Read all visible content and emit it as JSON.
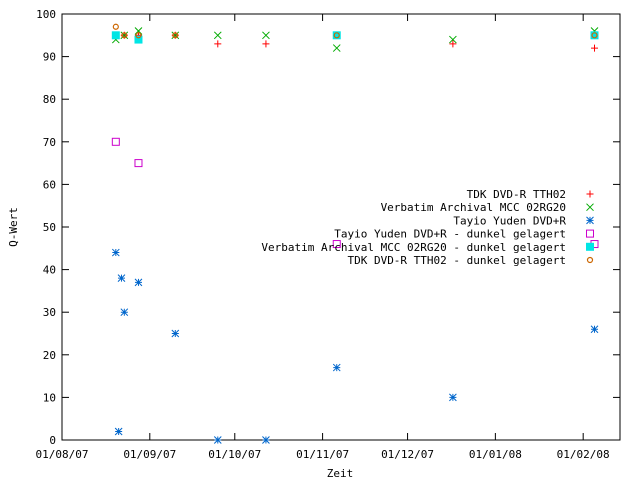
{
  "chart_data": {
    "type": "scatter",
    "xlabel": "Zeit",
    "ylabel": "Q-Wert",
    "xlim": [
      "2007-08-01",
      "2008-02-14"
    ],
    "ylim": [
      0,
      100
    ],
    "x_ticks": [
      "2007-08-01",
      "2007-09-01",
      "2007-10-01",
      "2007-11-01",
      "2007-12-01",
      "2008-01-01",
      "2008-02-01"
    ],
    "x_tick_labels": [
      "01/08/07",
      "01/09/07",
      "01/10/07",
      "01/11/07",
      "01/12/07",
      "01/01/08",
      "01/02/08"
    ],
    "y_ticks": [
      0,
      10,
      20,
      30,
      40,
      50,
      60,
      70,
      80,
      90,
      100
    ],
    "y_tick_labels": [
      "0",
      "10",
      "20",
      "30",
      "40",
      "50",
      "60",
      "70",
      "80",
      "90",
      "100"
    ],
    "grid": false,
    "legend_position": "right",
    "series": [
      {
        "name": "TDK DVD-R TTH02",
        "color": "#ff0000",
        "marker": "plus",
        "points": [
          {
            "x": "2007-08-20",
            "y": 95
          },
          {
            "x": "2007-08-23",
            "y": 95
          },
          {
            "x": "2007-08-28",
            "y": 95
          },
          {
            "x": "2007-09-10",
            "y": 95
          },
          {
            "x": "2007-09-25",
            "y": 93
          },
          {
            "x": "2007-10-12",
            "y": 93
          },
          {
            "x": "2007-11-06",
            "y": 95
          },
          {
            "x": "2007-12-17",
            "y": 93
          },
          {
            "x": "2008-02-05",
            "y": 92
          }
        ]
      },
      {
        "name": "Verbatim Archival MCC 02RG20",
        "color": "#00aa00",
        "marker": "cross",
        "points": [
          {
            "x": "2007-08-20",
            "y": 94
          },
          {
            "x": "2007-08-23",
            "y": 95
          },
          {
            "x": "2007-08-28",
            "y": 96
          },
          {
            "x": "2007-09-10",
            "y": 95
          },
          {
            "x": "2007-09-25",
            "y": 95
          },
          {
            "x": "2007-10-12",
            "y": 95
          },
          {
            "x": "2007-11-06",
            "y": 92
          },
          {
            "x": "2007-12-17",
            "y": 94
          },
          {
            "x": "2008-02-05",
            "y": 96
          }
        ]
      },
      {
        "name": "Tayio Yuden DVD+R",
        "color": "#0066cc",
        "marker": "star",
        "points": [
          {
            "x": "2007-08-20",
            "y": 44
          },
          {
            "x": "2007-08-21",
            "y": 2
          },
          {
            "x": "2007-08-22",
            "y": 38
          },
          {
            "x": "2007-08-23",
            "y": 30
          },
          {
            "x": "2007-08-28",
            "y": 37
          },
          {
            "x": "2007-09-10",
            "y": 25
          },
          {
            "x": "2007-09-25",
            "y": 0
          },
          {
            "x": "2007-10-12",
            "y": 0
          },
          {
            "x": "2007-11-06",
            "y": 17
          },
          {
            "x": "2007-12-17",
            "y": 10
          },
          {
            "x": "2008-02-05",
            "y": 26
          }
        ]
      },
      {
        "name": "Tayio Yuden DVD+R - dunkel gelagert",
        "color": "#cc00cc",
        "marker": "open-square",
        "points": [
          {
            "x": "2007-08-20",
            "y": 70
          },
          {
            "x": "2007-08-28",
            "y": 65
          },
          {
            "x": "2007-11-06",
            "y": 46
          },
          {
            "x": "2008-02-05",
            "y": 46
          }
        ]
      },
      {
        "name": "Verbatim Archival MCC 02RG20 - dunkel gelagert",
        "color": "#00e5e5",
        "marker": "filled-square",
        "points": [
          {
            "x": "2007-08-20",
            "y": 95
          },
          {
            "x": "2007-08-28",
            "y": 94
          },
          {
            "x": "2007-11-06",
            "y": 95
          },
          {
            "x": "2008-02-05",
            "y": 95
          }
        ]
      },
      {
        "name": "TDK DVD-R TTH02 - dunkel gelagert",
        "color": "#cc6600",
        "marker": "open-circle",
        "points": [
          {
            "x": "2007-08-20",
            "y": 97
          },
          {
            "x": "2007-08-23",
            "y": 95
          },
          {
            "x": "2007-08-28",
            "y": 95
          },
          {
            "x": "2007-09-10",
            "y": 95
          },
          {
            "x": "2007-11-06",
            "y": 95
          },
          {
            "x": "2008-02-05",
            "y": 95
          }
        ]
      }
    ]
  }
}
